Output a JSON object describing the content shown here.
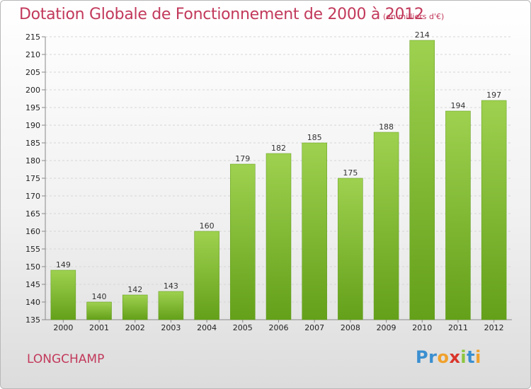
{
  "chart_data": {
    "type": "bar",
    "title": "Dotation Globale de Fonctionnement de 2000 à 2012",
    "subtitle": "(en milliers d'€)",
    "categories": [
      "2000",
      "2001",
      "2002",
      "2003",
      "2004",
      "2005",
      "2006",
      "2007",
      "2008",
      "2009",
      "2010",
      "2011",
      "2012"
    ],
    "values": [
      149,
      140,
      142,
      143,
      160,
      179,
      182,
      185,
      175,
      188,
      214,
      194,
      197
    ],
    "ylim": [
      135,
      215
    ],
    "yticks": [
      "135",
      "140",
      "145",
      "150",
      "155",
      "160",
      "165",
      "170",
      "175",
      "180",
      "185",
      "190",
      "195",
      "200",
      "205",
      "210",
      "215"
    ],
    "grid": true,
    "bar_color": "#7dbb2a",
    "xlabel": "",
    "ylabel": ""
  },
  "footer": {
    "commune": "LONGCHAMP",
    "brand_letters": [
      {
        "ch": "P",
        "color": "#3a8fd0"
      },
      {
        "ch": "r",
        "color": "#3a8fd0"
      },
      {
        "ch": "o",
        "color": "#f0a12c"
      },
      {
        "ch": "x",
        "color": "#d9352b"
      },
      {
        "ch": "i",
        "color": "#8cc63f"
      },
      {
        "ch": "t",
        "color": "#3a8fd0"
      },
      {
        "ch": "i",
        "color": "#f0a12c"
      }
    ]
  }
}
